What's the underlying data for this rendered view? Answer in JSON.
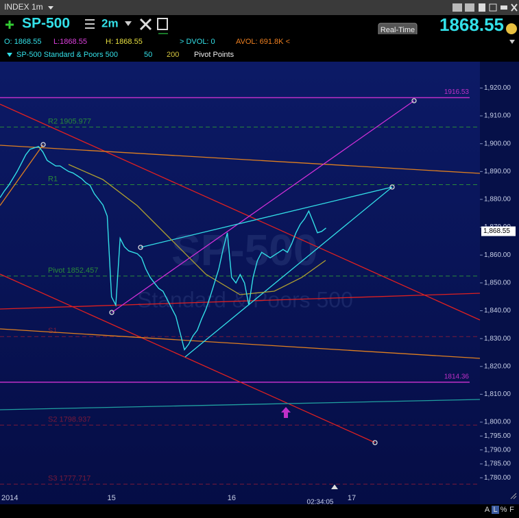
{
  "toolbar": {
    "symbol_menu": "INDEX 1m",
    "symbol": "SP-500",
    "interval": "2m",
    "dvol": "> DVOL: 0",
    "avol": "AVOL: 691.8K <",
    "realtime": "Real-Time",
    "price": "1868.55",
    "ohlc": [
      "O: 1868.55",
      "L:1868.55",
      "H: 1868.55"
    ],
    "study_name": "SP-500 Standard & Poors 500",
    "ma_fast": "50",
    "ma_slow": "200",
    "pivots": "Pivot Points",
    "bottom_buttons": [
      "A",
      "L",
      "%",
      "F"
    ]
  },
  "watermark": {
    "symbol": "SP-500",
    "name": "Standard & Poors 500"
  },
  "chart_data": {
    "type": "line",
    "categories": [
      "2014",
      null,
      null,
      null,
      null,
      null,
      null,
      null,
      null,
      null,
      null,
      null,
      null,
      null,
      null,
      null,
      null,
      null,
      null,
      null,
      null,
      null,
      null,
      null,
      null,
      null,
      "15",
      null,
      null,
      null,
      null,
      null,
      null,
      null,
      null,
      null,
      null,
      null,
      null,
      null,
      null,
      null,
      null,
      null,
      null,
      null,
      null,
      null,
      null,
      null,
      null,
      null,
      null,
      null,
      "16",
      null,
      null,
      null,
      null,
      null,
      null,
      null,
      null,
      null,
      null,
      null,
      null,
      null,
      null,
      null,
      null,
      null,
      null,
      null,
      null,
      null,
      null,
      null,
      null,
      null,
      null,
      null,
      "17"
    ],
    "series": [
      {
        "name": "SP-500",
        "color": "#33e0e8",
        "values": [
          1880.6,
          1883,
          1885,
          1887.5,
          1890,
          1893,
          1896,
          1898,
          1898.5,
          1899,
          1897,
          1894,
          1893,
          1892,
          1892,
          1891,
          1890,
          1889.5,
          1888.5,
          1887.5,
          1886,
          1885,
          1882,
          1880,
          1878,
          1874,
          1845,
          1842,
          1866,
          1863,
          1861.5,
          1861,
          1860.5,
          1859,
          1855,
          1852,
          1850,
          1848,
          1847,
          1844,
          1841,
          1838,
          1832,
          1826,
          1828,
          1831,
          1833,
          1837,
          1840.5,
          1845,
          1850,
          1855,
          1862,
          1868,
          1852,
          1850,
          1853,
          1850,
          1842,
          1852,
          1858,
          1861,
          1860,
          1859,
          1860,
          1861,
          1862,
          1861,
          1864,
          1868,
          1871,
          1873,
          1875.8,
          1872,
          1868,
          1868.5,
          1869.7,
          null,
          null,
          null,
          null,
          null,
          null
        ]
      }
    ],
    "ylim": [
      1769,
      1927
    ],
    "yticks": [
      {
        "value": 1920,
        "label": "1,920.00"
      },
      {
        "value": 1910,
        "label": "1,910.00"
      },
      {
        "value": 1900,
        "label": "1,900.00"
      },
      {
        "value": 1890,
        "label": "1,890.00"
      },
      {
        "value": 1880,
        "label": "1,880.00"
      },
      {
        "value": 1870,
        "label": "1,870.00"
      },
      {
        "value": 1860,
        "label": "1,860.00"
      },
      {
        "value": 1850,
        "label": "1,850.00"
      },
      {
        "value": 1840,
        "label": "1,840.00"
      },
      {
        "value": 1830,
        "label": "1,830.00"
      },
      {
        "value": 1820,
        "label": "1,820.00"
      },
      {
        "value": 1810,
        "label": "1,810.00"
      },
      {
        "value": 1800,
        "label": "1,800.00"
      },
      {
        "value": 1795,
        "label": "1,795.00"
      },
      {
        "value": 1790,
        "label": "1,790.00"
      },
      {
        "value": 1785,
        "label": "1,785.00"
      },
      {
        "value": 1780,
        "label": "1,780.00"
      }
    ],
    "last_price": {
      "value": 1868.55,
      "label": "1,868.55"
    },
    "cursor_time": "02:34:05",
    "levels": [
      {
        "value": 1916.53,
        "color": "#c030c8"
      },
      {
        "value": 1814.36,
        "color": "#c030c8"
      }
    ],
    "pivot_levels": [
      {
        "label": "R2 1905.977",
        "value": 1905.977,
        "color": "#2a8a3a"
      },
      {
        "label": "R1",
        "value": 1885.3,
        "color": "#2a8a3a"
      },
      {
        "label": "Pivot 1852.457",
        "value": 1852.457,
        "color": "#2a8a3a"
      },
      {
        "label": "S1",
        "value": 1830.7,
        "color": "#7a1a3a"
      },
      {
        "label": "S2 1798.937",
        "value": 1798.937,
        "color": "#7a1a3a"
      },
      {
        "label": "S3 1777.717",
        "value": 1777.717,
        "color": "#7a1a3a"
      }
    ]
  }
}
